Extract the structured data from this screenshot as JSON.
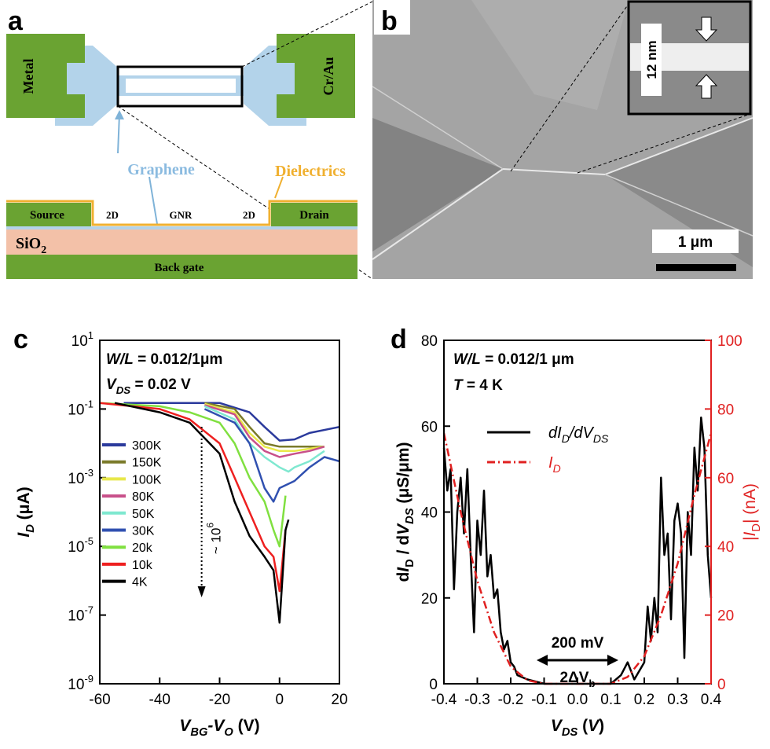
{
  "panel_a": {
    "label": "a",
    "metal": "Metal",
    "cr_au": "Cr/Au",
    "graphene": "Graphene",
    "dielectrics": "Dielectrics",
    "source": "Source",
    "left_2d": "2D",
    "gnr": "GNR",
    "right_2d": "2D",
    "drain": "Drain",
    "sio2": [
      {
        "text": "SiO"
      },
      {
        "text": "2",
        "sub": true
      }
    ],
    "back_gate": "Back gate"
  },
  "panel_b": {
    "label": "b",
    "inset_width": "12 nm",
    "scale_bar": "1 μm"
  },
  "chart_data": [
    {
      "type": "line",
      "panel_label": "c",
      "log_y": true,
      "legend": "left",
      "xlim": [
        -60,
        20
      ],
      "xticks": [
        -60,
        -40,
        -20,
        0,
        20
      ],
      "ylim": [
        1e-09,
        10
      ],
      "yticks": [
        {
          "value": 10,
          "label": "10",
          "exponent": "1"
        },
        {
          "value": 0.1,
          "label": "10",
          "exponent": "-1"
        },
        {
          "value": 0.001,
          "label": "10",
          "exponent": "-3"
        },
        {
          "value": 1e-05,
          "label": "10",
          "exponent": "-5"
        },
        {
          "value": 1e-07,
          "label": "10",
          "exponent": "-7"
        },
        {
          "value": 1e-09,
          "label": "10",
          "exponent": "-9"
        }
      ],
      "xlabel": [
        {
          "text": "V",
          "italic": true
        },
        {
          "text": "BG",
          "italic": true,
          "sub": true
        },
        {
          "text": "-V",
          "italic": true
        },
        {
          "text": "O",
          "italic": true,
          "sub": true
        },
        {
          "text": " (V)"
        }
      ],
      "ylabel": [
        {
          "text": "I",
          "italic": true
        },
        {
          "text": "D",
          "italic": true,
          "sub": true
        },
        {
          "text": " (μA)"
        }
      ],
      "annotations": {
        "wl": [
          {
            "text": "W/L",
            "italic": true
          },
          {
            "text": " = 0.012/1μm"
          }
        ],
        "vds": [
          {
            "text": "V",
            "italic": true
          },
          {
            "text": "DS",
            "italic": true,
            "sub": true
          },
          {
            "text": " = 0.02 V"
          }
        ],
        "ratio": [
          {
            "text": "~ 10"
          },
          {
            "text": "6",
            "sup": true
          }
        ]
      },
      "series": [
        {
          "name": "300K",
          "color": "#2b3a9c",
          "x": [
            -52,
            -40,
            -20,
            -10,
            -5,
            0,
            5,
            10,
            20
          ],
          "values": [
            0.15,
            0.15,
            0.15,
            0.08,
            0.03,
            0.012,
            0.013,
            0.02,
            0.03
          ]
        },
        {
          "name": "150K",
          "color": "#7a7a2a",
          "x": [
            -25,
            -15,
            -10,
            -5,
            0,
            5,
            10,
            15
          ],
          "values": [
            0.15,
            0.1,
            0.03,
            0.01,
            0.008,
            0.008,
            0.008,
            0.008
          ]
        },
        {
          "name": "100K",
          "color": "#e8e84a",
          "x": [
            -25,
            -15,
            -10,
            -5,
            0,
            5,
            10,
            15
          ],
          "values": [
            0.14,
            0.08,
            0.02,
            0.008,
            0.006,
            0.006,
            0.007,
            0.008
          ]
        },
        {
          "name": "80K",
          "color": "#c8508a",
          "x": [
            -25,
            -15,
            -10,
            -5,
            0,
            5,
            10,
            15
          ],
          "values": [
            0.13,
            0.07,
            0.015,
            0.006,
            0.004,
            0.005,
            0.006,
            0.008
          ]
        },
        {
          "name": "50K",
          "color": "#7fe8d0",
          "x": [
            -25,
            -15,
            -10,
            -5,
            0,
            3,
            5,
            10,
            15
          ],
          "values": [
            0.12,
            0.05,
            0.01,
            0.004,
            0.002,
            0.0015,
            0.002,
            0.003,
            0.006
          ]
        },
        {
          "name": "30K",
          "color": "#3050b0",
          "x": [
            -25,
            -15,
            -10,
            -5,
            -2,
            0,
            5,
            10,
            15,
            20
          ],
          "values": [
            0.1,
            0.04,
            0.01,
            0.0005,
            0.0002,
            0.0005,
            0.0008,
            0.002,
            0.004,
            0.003
          ]
        },
        {
          "name": "20k",
          "color": "#80e040",
          "x": [
            -60,
            -40,
            -30,
            -20,
            -15,
            -10,
            -5,
            -2,
            0,
            2
          ],
          "values": [
            0.15,
            0.12,
            0.08,
            0.04,
            0.01,
            0.001,
            0.0002,
            3e-05,
            1e-05,
            0.0003
          ]
        },
        {
          "name": "10k",
          "color": "#ee2020",
          "x": [
            -60,
            -40,
            -30,
            -20,
            -15,
            -10,
            -5,
            -2,
            0,
            2
          ],
          "values": [
            0.15,
            0.1,
            0.05,
            0.01,
            0.001,
            0.0001,
            1e-05,
            5e-06,
            5e-07,
            3e-05
          ]
        },
        {
          "name": "4K",
          "color": "#000000",
          "x": [
            -55,
            -40,
            -30,
            -20,
            -15,
            -10,
            -5,
            -2,
            0,
            2,
            3
          ],
          "values": [
            0.15,
            0.08,
            0.04,
            0.005,
            0.0002,
            2e-05,
            5e-06,
            2e-06,
            6e-08,
            3e-05,
            6e-05
          ]
        }
      ]
    },
    {
      "type": "line",
      "panel_label": "d",
      "log_y": false,
      "legend": "upper-left",
      "xlim": [
        -0.4,
        0.4
      ],
      "xticks": [
        -0.4,
        -0.3,
        -0.2,
        -0.1,
        {
          "value": 0,
          "label": "0.0"
        },
        0.1,
        0.2,
        0.3,
        0.4
      ],
      "ylim": [
        0,
        80
      ],
      "yticks": [
        0,
        20,
        40,
        60,
        80
      ],
      "y2lim": [
        0,
        100
      ],
      "y2ticks": [
        0,
        20,
        40,
        60,
        80,
        100
      ],
      "y2color": "#e02020",
      "xlabel": [
        {
          "text": "V",
          "italic": true
        },
        {
          "text": "DS",
          "italic": true,
          "sub": true
        },
        {
          "text": " ("
        },
        {
          "text": "V",
          "italic": true
        },
        {
          "text": ")"
        }
      ],
      "ylabel": [
        {
          "text": "d"
        },
        {
          "text": "I",
          "italic": true
        },
        {
          "text": "D",
          "sub": true
        },
        {
          "text": " / d"
        },
        {
          "text": "V",
          "italic": true
        },
        {
          "text": "DS",
          "italic": true,
          "sub": true
        },
        {
          "text": " (μS/μm)"
        }
      ],
      "y2label": [
        {
          "text": "|"
        },
        {
          "text": "I",
          "italic": true
        },
        {
          "text": "D",
          "sub": true
        },
        {
          "text": "| (nA)"
        }
      ],
      "annotations": {
        "wl": [
          {
            "text": "W/L",
            "italic": true
          },
          {
            "text": " = 0.012/1 μm"
          }
        ],
        "t": [
          {
            "text": "T",
            "italic": true
          },
          {
            "text": " = 4 K"
          }
        ],
        "gap": "200 mV",
        "delta": [
          {
            "text": "2ΔV"
          },
          {
            "text": "b",
            "sub": true
          }
        ]
      },
      "series": [
        {
          "name": [
            {
              "text": "dI",
              "italic": true
            },
            {
              "text": "D",
              "italic": true,
              "sub": true
            },
            {
              "text": "/dV",
              "italic": true
            },
            {
              "text": "DS",
              "italic": true,
              "sub": true
            }
          ],
          "color": "#000000",
          "dash": "solid",
          "x": [
            -0.4,
            -0.39,
            -0.38,
            -0.37,
            -0.36,
            -0.35,
            -0.34,
            -0.33,
            -0.32,
            -0.31,
            -0.3,
            -0.29,
            -0.28,
            -0.27,
            -0.26,
            -0.25,
            -0.24,
            -0.23,
            -0.22,
            -0.21,
            -0.2,
            -0.19,
            -0.18,
            -0.15,
            -0.1,
            -0.05,
            0,
            0.05,
            0.1,
            0.13,
            0.15,
            0.17,
            0.2,
            0.21,
            0.22,
            0.23,
            0.24,
            0.25,
            0.26,
            0.27,
            0.28,
            0.29,
            0.3,
            0.31,
            0.32,
            0.33,
            0.34,
            0.35,
            0.36,
            0.37,
            0.38,
            0.39,
            0.4
          ],
          "values": [
            55,
            45,
            50,
            22,
            40,
            48,
            35,
            50,
            30,
            12,
            38,
            30,
            45,
            25,
            30,
            20,
            22,
            12,
            8,
            10,
            5,
            4,
            2,
            1,
            0,
            0,
            0,
            0,
            0,
            2,
            5,
            1,
            5,
            18,
            10,
            20,
            12,
            48,
            30,
            35,
            15,
            38,
            42,
            35,
            6,
            40,
            30,
            55,
            45,
            62,
            55,
            30,
            20
          ]
        },
        {
          "name": [
            {
              "text": "I",
              "italic": true
            },
            {
              "text": "D",
              "italic": true,
              "sub": true
            }
          ],
          "color": "#e02020",
          "dash": "dashdot",
          "axis": "y2",
          "x": [
            -0.4,
            -0.35,
            -0.3,
            -0.25,
            -0.2,
            -0.15,
            -0.1,
            0,
            0.1,
            0.15,
            0.2,
            0.25,
            0.3,
            0.35,
            0.4
          ],
          "values": [
            73,
            50,
            30,
            15,
            5,
            1,
            0,
            0,
            0,
            2,
            8,
            20,
            35,
            55,
            73
          ]
        }
      ]
    }
  ]
}
